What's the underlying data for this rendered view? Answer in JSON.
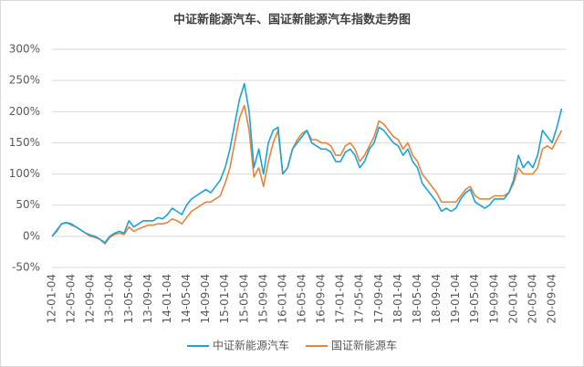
{
  "chart_data": {
    "type": "line",
    "title": "中证新能源汽车、国证新能源汽车指数走势图",
    "categories": [
      "12-01-04",
      null,
      null,
      null,
      "12-05-04",
      null,
      null,
      null,
      "12-09-04",
      null,
      null,
      null,
      "13-01-04",
      null,
      null,
      null,
      "13-05-04",
      null,
      null,
      null,
      "13-09-04",
      null,
      null,
      null,
      "14-01-04",
      null,
      null,
      null,
      "14-05-04",
      null,
      null,
      null,
      "14-09-04",
      null,
      null,
      null,
      "15-01-04",
      null,
      null,
      null,
      "15-05-04",
      null,
      null,
      null,
      "15-09-04",
      null,
      null,
      null,
      "16-01-04",
      null,
      null,
      null,
      "16-05-04",
      null,
      null,
      null,
      "16-09-04",
      null,
      null,
      null,
      "17-01-04",
      null,
      null,
      null,
      "17-05-04",
      null,
      null,
      null,
      "17-09-04",
      null,
      null,
      null,
      "18-01-04",
      null,
      null,
      null,
      "18-05-04",
      null,
      null,
      null,
      "18-09-04",
      null,
      null,
      null,
      "19-01-04",
      null,
      null,
      null,
      "19-05-04",
      null,
      null,
      null,
      "19-09-04",
      null,
      null,
      null,
      "20-01-04",
      null,
      null,
      null,
      "20-05-04",
      null,
      null,
      null,
      "20-09-04",
      null,
      null
    ],
    "series": [
      {
        "name": "中证新能源汽车",
        "color": "#1aa3d9",
        "values": [
          0,
          10,
          20,
          22,
          20,
          15,
          10,
          5,
          2,
          0,
          -5,
          -10,
          0,
          5,
          8,
          5,
          25,
          15,
          20,
          25,
          25,
          25,
          30,
          28,
          35,
          45,
          40,
          35,
          50,
          60,
          65,
          70,
          75,
          70,
          80,
          90,
          110,
          140,
          180,
          220,
          245,
          200,
          110,
          140,
          100,
          150,
          170,
          175,
          100,
          110,
          140,
          150,
          160,
          170,
          150,
          145,
          140,
          140,
          135,
          120,
          120,
          135,
          140,
          130,
          110,
          120,
          140,
          150,
          175,
          170,
          160,
          150,
          145,
          130,
          140,
          120,
          110,
          85,
          75,
          65,
          55,
          40,
          45,
          40,
          45,
          60,
          70,
          75,
          55,
          50,
          45,
          50,
          60,
          60,
          60,
          70,
          90,
          130,
          110,
          120,
          110,
          130,
          170,
          160,
          150,
          175,
          205
        ]
      },
      {
        "name": "国证新能源车",
        "color": "#e8843a",
        "values": [
          0,
          8,
          20,
          22,
          18,
          15,
          10,
          5,
          0,
          -2,
          -5,
          -12,
          -2,
          3,
          5,
          3,
          15,
          8,
          12,
          15,
          18,
          18,
          20,
          20,
          22,
          28,
          25,
          20,
          30,
          40,
          45,
          50,
          55,
          55,
          60,
          65,
          85,
          110,
          150,
          190,
          210,
          170,
          95,
          110,
          80,
          120,
          150,
          170,
          100,
          110,
          140,
          155,
          165,
          170,
          155,
          155,
          150,
          150,
          145,
          130,
          130,
          145,
          150,
          140,
          120,
          130,
          145,
          160,
          185,
          180,
          170,
          160,
          155,
          140,
          150,
          130,
          120,
          100,
          90,
          80,
          70,
          55,
          55,
          55,
          55,
          65,
          75,
          80,
          65,
          60,
          60,
          60,
          65,
          65,
          65,
          70,
          85,
          110,
          100,
          100,
          100,
          110,
          140,
          145,
          140,
          155,
          170
        ]
      }
    ],
    "ylim": [
      -50,
      300
    ],
    "yticks": [
      {
        "value": -50,
        "label": "-50%"
      },
      {
        "value": 0,
        "label": "0%"
      },
      {
        "value": 50,
        "label": "50%"
      },
      {
        "value": 100,
        "label": "100%"
      },
      {
        "value": 150,
        "label": "150%"
      },
      {
        "value": 200,
        "label": "200%"
      },
      {
        "value": 250,
        "label": "250%"
      },
      {
        "value": 300,
        "label": "300%"
      }
    ],
    "grid": true
  }
}
